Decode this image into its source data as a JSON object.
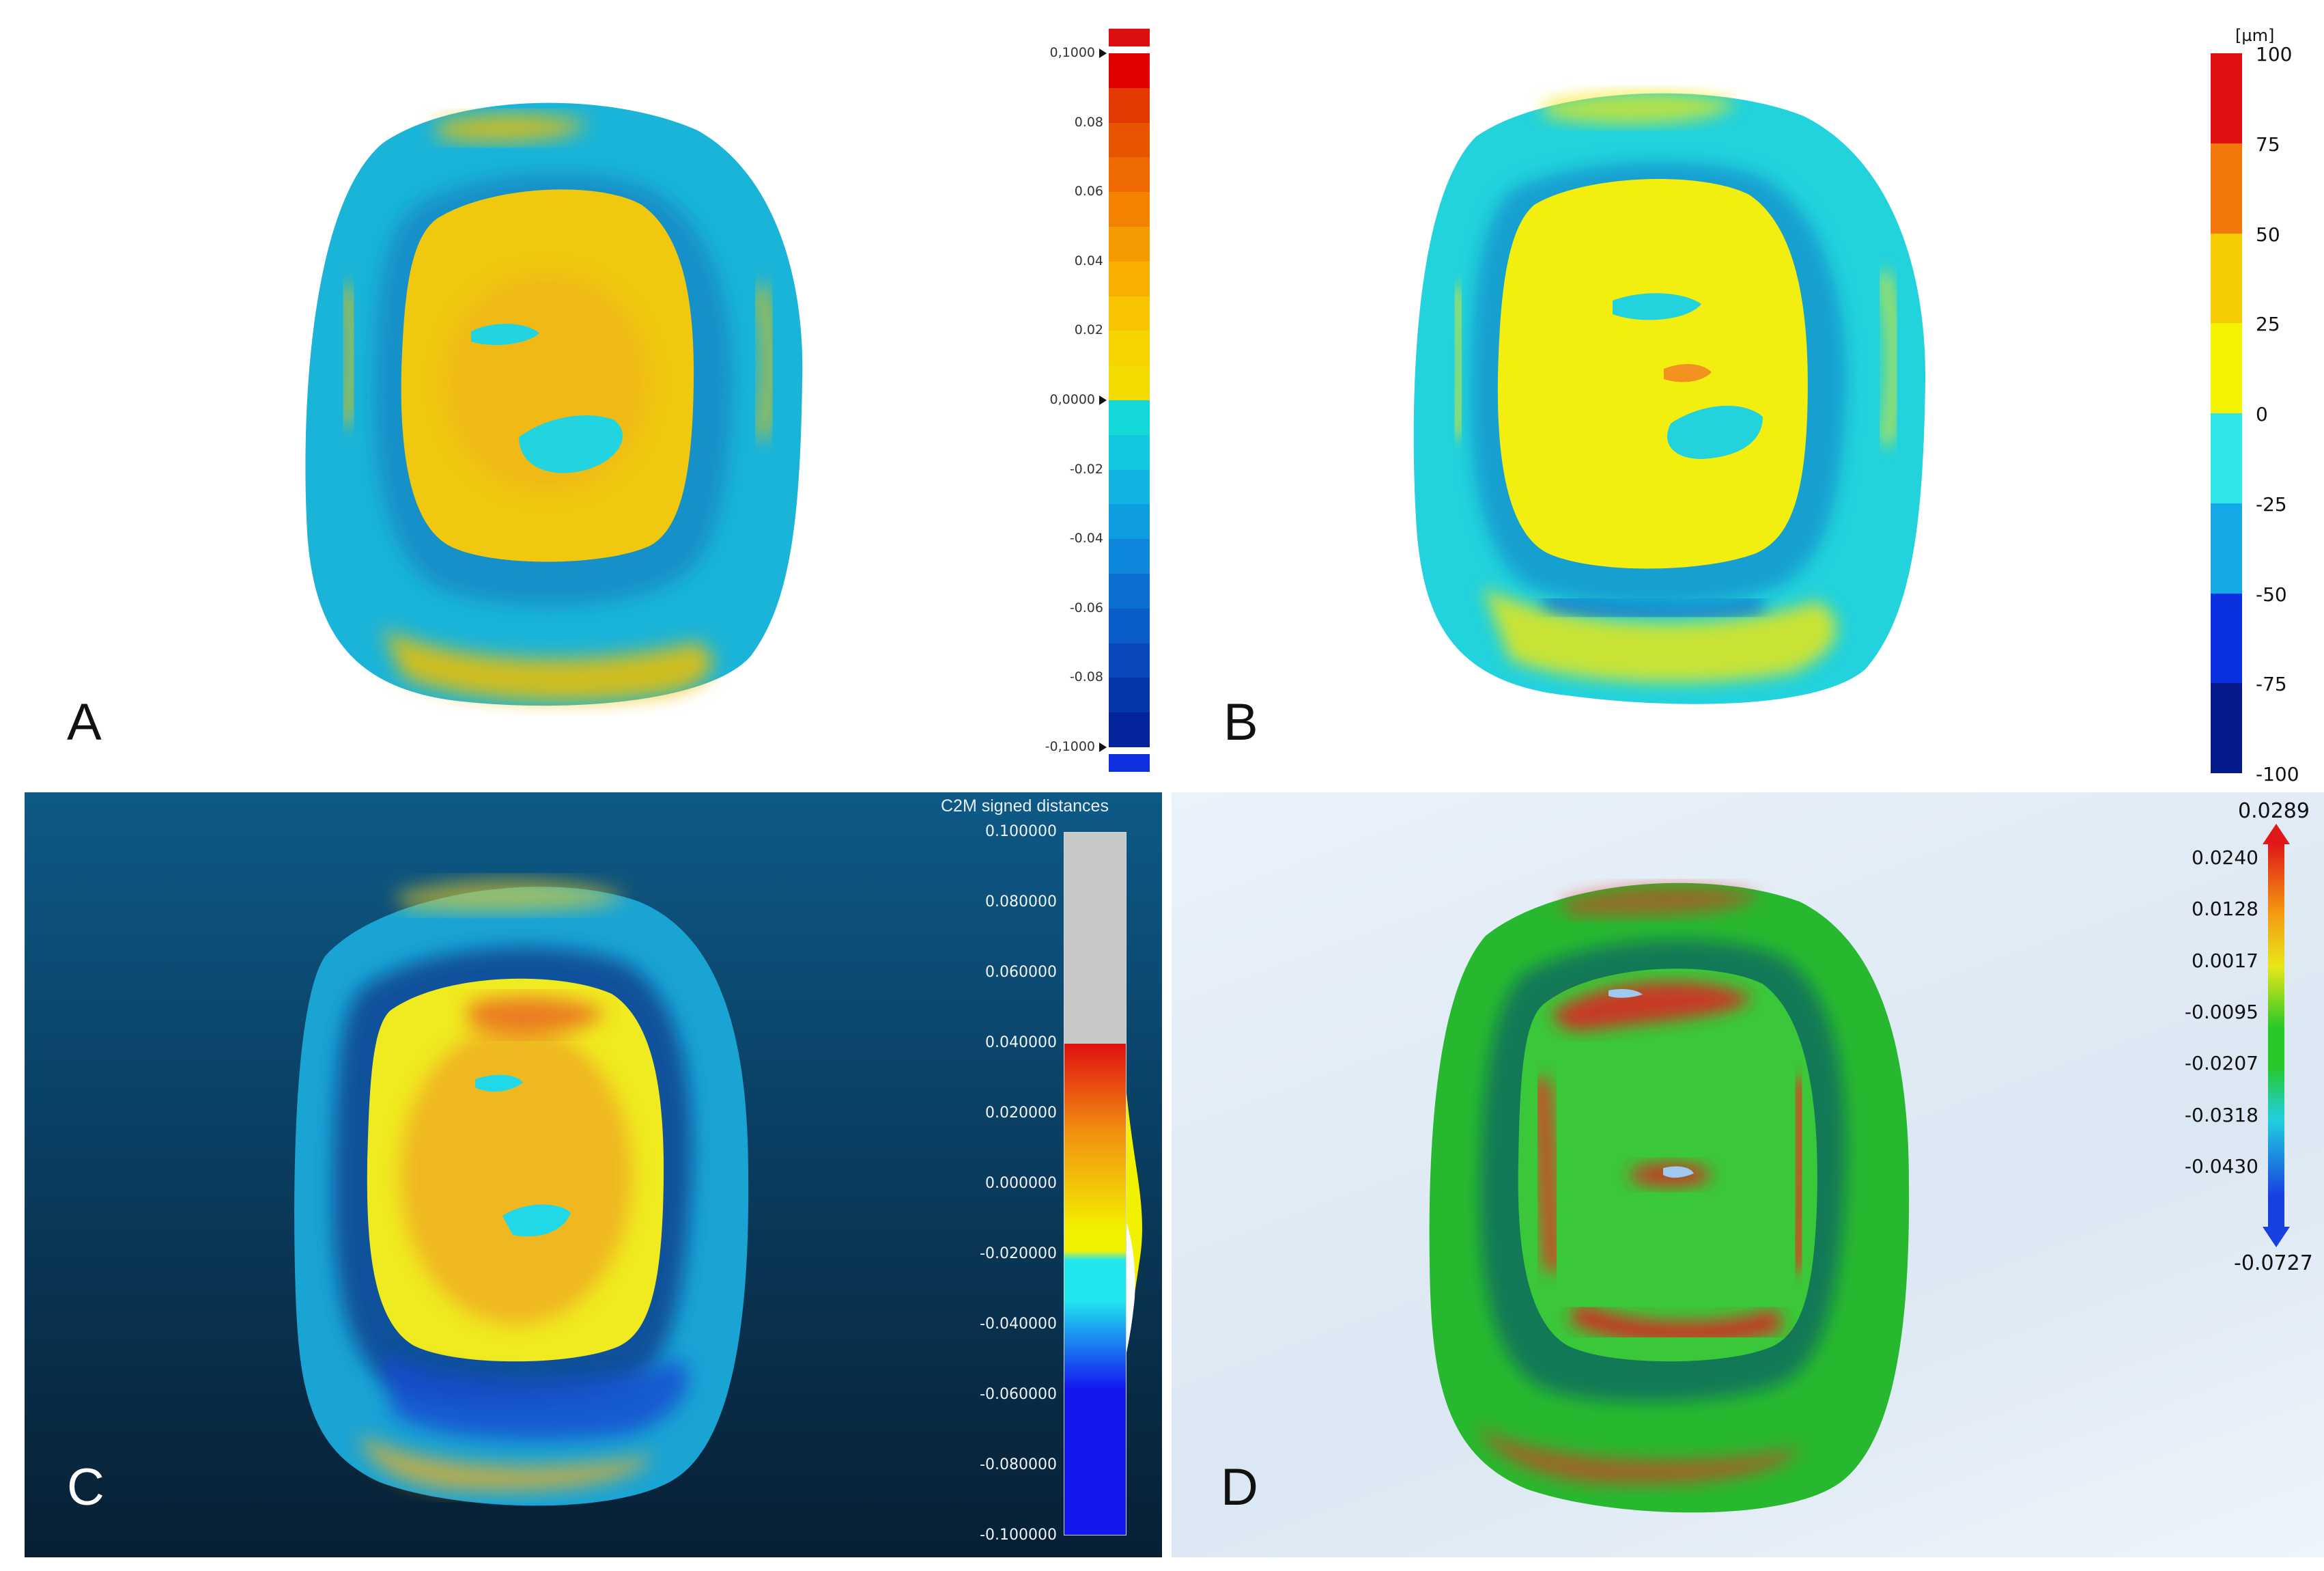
{
  "panels": {
    "a": {
      "letter": "A",
      "scale_ticks": [
        "0,1000",
        "0.08",
        "0.06",
        "0.04",
        "0.02",
        "0,0000",
        "-0.02",
        "-0.04",
        "-0.06",
        "-0.08",
        "-0,1000"
      ],
      "colors": [
        "#e00000",
        "#e23a00",
        "#e85500",
        "#ee6a00",
        "#f28200",
        "#f59a00",
        "#f7b000",
        "#f8c400",
        "#f7d300",
        "#f2dc00",
        "#14d8d8",
        "#12c8e0",
        "#10b4e4",
        "#0f9de2",
        "#0d86dc",
        "#0b6fd2",
        "#0a5cc6",
        "#0848b8",
        "#0536aa",
        "#03249a"
      ],
      "overflow_high_color": "#dd1010",
      "overflow_low_color": "#1030e0"
    },
    "b": {
      "letter": "B",
      "unit": "[µm]",
      "scale_ticks": [
        "100",
        "75",
        "50",
        "25",
        "0",
        "-25",
        "-50",
        "-75",
        "-100"
      ],
      "colors": [
        "#e01010",
        "#f2780a",
        "#f5cc00",
        "#f5f200",
        "#2ee6e6",
        "#15a8e6",
        "#0a30e0",
        "#041a8a"
      ]
    },
    "c": {
      "letter": "C",
      "legend_title": "C2M signed distances",
      "scale_ticks": [
        "0.100000",
        "0.080000",
        "0.060000",
        "0.040000",
        "0.020000",
        "0.000000",
        "-0.020000",
        "-0.040000",
        "-0.060000",
        "-0.080000",
        "-0.100000"
      ],
      "colors": {
        "out_of_range": "#c8c8c8",
        "red": "#e01010",
        "orange": "#f29010",
        "yellow": "#f2f200",
        "cyan": "#20e6f0",
        "blue": "#1418f0"
      }
    },
    "d": {
      "letter": "D",
      "max_label": "0.0289",
      "min_label": "-0.0727",
      "scale_ticks": [
        "0.0240",
        "0.0128",
        "0.0017",
        "-0.0095",
        "-0.0207",
        "-0.0318",
        "-0.0430"
      ],
      "colors": {
        "red": "#e01818",
        "orange": "#f49a10",
        "yellow": "#e8e818",
        "green": "#28c828",
        "cyan": "#20d0e0",
        "blue": "#1840e0"
      }
    }
  }
}
